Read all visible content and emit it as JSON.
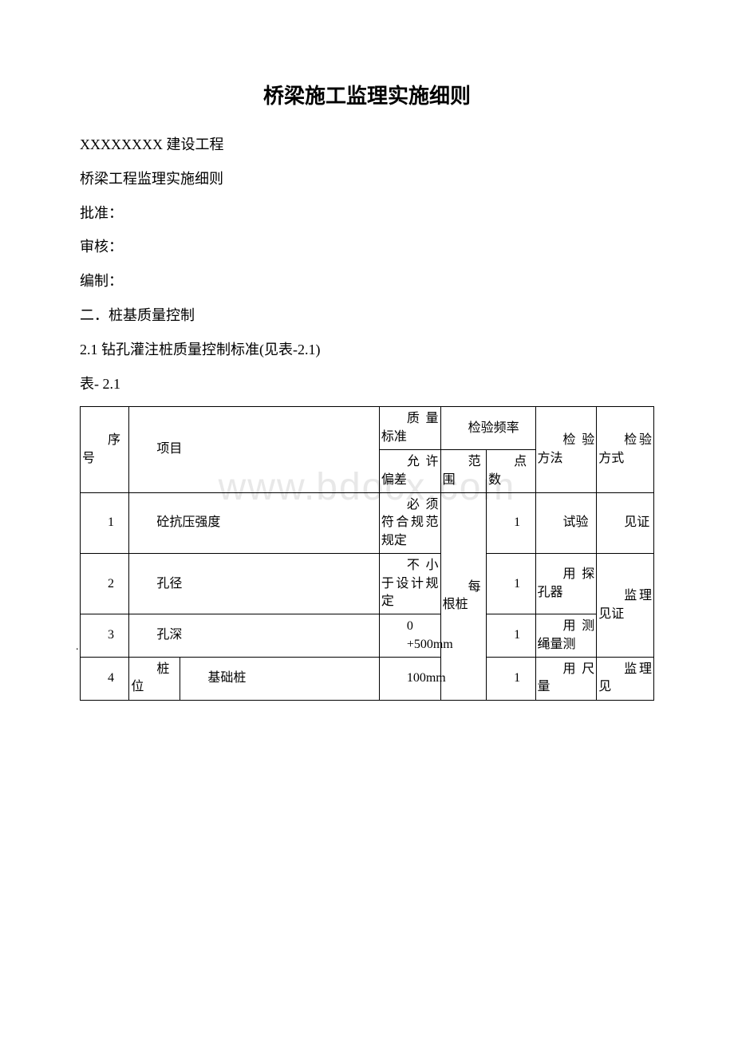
{
  "title": "桥梁施工监理实施细则",
  "header_lines": [
    "XXXXXXXX 建设工程",
    "桥梁工程监理实施细则",
    "批准：",
    "审核：",
    "编制：",
    "二．桩基质量控制",
    "2.1 钻孔灌注桩质量控制标准(见表-2.1)"
  ],
  "table_label": " 表- 2.1",
  "watermark": "www.bdocx.com",
  "thead": {
    "seq": "序号",
    "item": "项目",
    "std_group": "质量标准",
    "std_sub": "允许偏差",
    "freq_group": "检验频率",
    "freq_range": "范围",
    "freq_count": "点数",
    "method": "检验方法",
    "mode": "检验方式"
  },
  "rows": [
    {
      "seq": "1",
      "item_full": "砼抗压强度",
      "std": "必须符合规范规定",
      "count": "1",
      "method": "试验",
      "mode": "见证"
    },
    {
      "seq": "2",
      "item_full": "孔径",
      "std": "不小于设计规定",
      "count": "1",
      "method": "用探孔器"
    },
    {
      "seq": "3",
      "item_full": "孔深",
      "std_a": "0",
      "std_b": "+500mm",
      "count": "1",
      "method": "用测绳量测"
    },
    {
      "seq": "4",
      "item_a": "桩位",
      "item_b": "基础桩",
      "std": "100mm",
      "count": "1",
      "method": "用尺量",
      "mode": "监理见"
    }
  ],
  "shared": {
    "range_all": "每根桩",
    "mode_234": "监理见证"
  }
}
